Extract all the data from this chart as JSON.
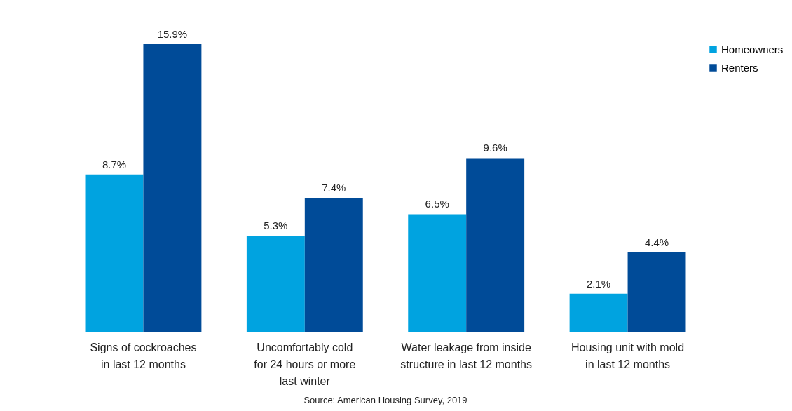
{
  "chart_data": {
    "type": "bar",
    "categories": [
      "Signs of cockroaches\nin last 12 months",
      "Uncomfortably cold\nfor 24 hours or more\nlast winter",
      "Water leakage from inside\nstructure in last 12 months",
      "Housing unit with mold\nin last 12 months"
    ],
    "series": [
      {
        "name": "Homeowners",
        "color": "#00a3e0",
        "values": [
          8.7,
          5.3,
          6.5,
          2.1
        ],
        "value_labels": [
          "8.7%",
          "5.3%",
          "6.5%",
          "2.1%"
        ]
      },
      {
        "name": "Renters",
        "color": "#004b98",
        "values": [
          15.9,
          7.4,
          9.6,
          4.4
        ],
        "value_labels": [
          "15.9%",
          "7.4%",
          "9.6%",
          "4.4%"
        ]
      }
    ],
    "legend": "right",
    "annotations": [
      "Source: American Housing Survey, 2019"
    ]
  }
}
